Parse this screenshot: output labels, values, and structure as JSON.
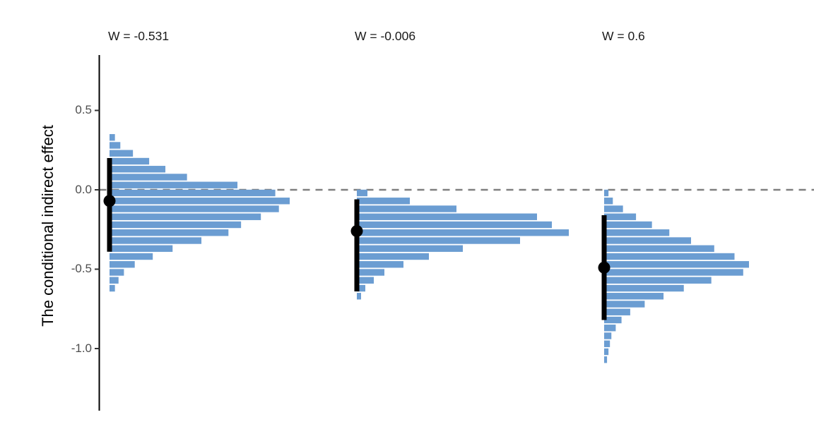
{
  "chart_data": {
    "type": "bar",
    "subtype": "horizontal-histogram-small-multiples-with-point-intervals",
    "title": "",
    "xlabel": "",
    "ylabel": "The conditional indirect effect",
    "y_ticks": [
      "0.5",
      "0.0",
      "-0.5",
      "-1.0"
    ],
    "y_tick_values": [
      0.5,
      0.0,
      -0.5,
      -1.0
    ],
    "ylim": [
      -1.38,
      0.85
    ],
    "grid": "off",
    "legend": "none",
    "bin_width": 0.05,
    "bar_color": "#6b9dd2",
    "interval_color": "#000000",
    "zero_reference_line": {
      "value": 0.0,
      "style": "dashed",
      "color": "#7f7f7f"
    },
    "panels": [
      {
        "label": "W = -0.531",
        "point_estimate": -0.07,
        "interval": [
          -0.39,
          0.2
        ],
        "bins": [
          [
            0.33,
            0.03
          ],
          [
            0.28,
            0.06
          ],
          [
            0.23,
            0.13
          ],
          [
            0.18,
            0.22
          ],
          [
            0.13,
            0.31
          ],
          [
            0.08,
            0.43
          ],
          [
            0.03,
            0.71
          ],
          [
            -0.02,
            0.92
          ],
          [
            -0.07,
            1.0
          ],
          [
            -0.12,
            0.94
          ],
          [
            -0.17,
            0.84
          ],
          [
            -0.22,
            0.73
          ],
          [
            -0.27,
            0.66
          ],
          [
            -0.32,
            0.51
          ],
          [
            -0.37,
            0.35
          ],
          [
            -0.42,
            0.24
          ],
          [
            -0.47,
            0.14
          ],
          [
            -0.52,
            0.08
          ],
          [
            -0.57,
            0.05
          ],
          [
            -0.62,
            0.03
          ]
        ]
      },
      {
        "label": "W = -0.006",
        "point_estimate": -0.26,
        "interval": [
          -0.64,
          -0.06
        ],
        "bins": [
          [
            -0.02,
            0.05
          ],
          [
            -0.07,
            0.25
          ],
          [
            -0.12,
            0.47
          ],
          [
            -0.17,
            0.85
          ],
          [
            -0.22,
            0.92
          ],
          [
            -0.27,
            1.0
          ],
          [
            -0.32,
            0.77
          ],
          [
            -0.37,
            0.5
          ],
          [
            -0.42,
            0.34
          ],
          [
            -0.47,
            0.22
          ],
          [
            -0.52,
            0.13
          ],
          [
            -0.57,
            0.08
          ],
          [
            -0.62,
            0.04
          ],
          [
            -0.67,
            0.02
          ]
        ]
      },
      {
        "label": "W = 0.6",
        "point_estimate": -0.49,
        "interval": [
          -0.82,
          -0.16
        ],
        "bins": [
          [
            -0.02,
            0.03
          ],
          [
            -0.07,
            0.06
          ],
          [
            -0.12,
            0.13
          ],
          [
            -0.17,
            0.22
          ],
          [
            -0.22,
            0.33
          ],
          [
            -0.27,
            0.45
          ],
          [
            -0.32,
            0.6
          ],
          [
            -0.37,
            0.76
          ],
          [
            -0.42,
            0.9
          ],
          [
            -0.47,
            1.0
          ],
          [
            -0.52,
            0.96
          ],
          [
            -0.57,
            0.74
          ],
          [
            -0.62,
            0.55
          ],
          [
            -0.67,
            0.41
          ],
          [
            -0.72,
            0.28
          ],
          [
            -0.77,
            0.18
          ],
          [
            -0.82,
            0.12
          ],
          [
            -0.87,
            0.08
          ],
          [
            -0.92,
            0.05
          ],
          [
            -0.97,
            0.04
          ],
          [
            -1.02,
            0.03
          ],
          [
            -1.07,
            0.02
          ]
        ]
      }
    ]
  }
}
